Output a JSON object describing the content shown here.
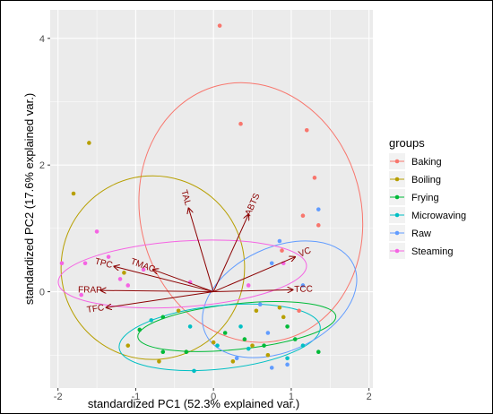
{
  "chart_data": {
    "type": "scatter",
    "title": "",
    "xlabel": "standardized PC1 (52.3% explained var.)",
    "ylabel": "standardized PC2 (17.6% explained var.)",
    "xlim": [
      -2.1,
      2.05
    ],
    "ylim": [
      -1.52,
      4.45
    ],
    "x_ticks": [
      -2,
      -1,
      0,
      1,
      2
    ],
    "y_ticks": [
      0,
      2,
      4
    ],
    "grid": true,
    "legend_title": "groups",
    "legend_position": "right",
    "series": [
      {
        "name": "Baking",
        "color": "#F8766D",
        "points": [
          [
            0.08,
            4.2
          ],
          [
            0.35,
            2.65
          ],
          [
            1.2,
            2.55
          ],
          [
            1.3,
            1.8
          ],
          [
            1.15,
            1.2
          ],
          [
            1.35,
            1.05
          ],
          [
            0.88,
            0.65
          ],
          [
            1.1,
            -0.3
          ]
        ]
      },
      {
        "name": "Boiling",
        "color": "#B79F00",
        "points": [
          [
            -1.6,
            2.35
          ],
          [
            -1.8,
            1.55
          ],
          [
            -1.15,
            0.3
          ],
          [
            -0.45,
            -0.3
          ],
          [
            0.55,
            -0.3
          ],
          [
            0.85,
            -0.25
          ],
          [
            0.5,
            -0.85
          ],
          [
            0.0,
            -0.8
          ],
          [
            -0.7,
            -1.1
          ],
          [
            -0.35,
            -0.95
          ],
          [
            0.25,
            -1.1
          ],
          [
            0.7,
            -1.0
          ],
          [
            0.9,
            -0.4
          ],
          [
            -1.1,
            -0.85
          ]
        ]
      },
      {
        "name": "Frying",
        "color": "#00BA38",
        "points": [
          [
            -0.95,
            -0.6
          ],
          [
            -0.65,
            -0.4
          ],
          [
            -0.35,
            -0.95
          ],
          [
            0.15,
            -0.65
          ],
          [
            0.4,
            -0.75
          ],
          [
            0.65,
            -0.85
          ],
          [
            0.95,
            -0.55
          ],
          [
            1.05,
            -0.75
          ],
          [
            1.35,
            -0.95
          ],
          [
            -0.65,
            -0.95
          ]
        ]
      },
      {
        "name": "Microwaving",
        "color": "#00BFC4",
        "points": [
          [
            -0.8,
            -0.45
          ],
          [
            -0.3,
            -0.55
          ],
          [
            0.05,
            -0.85
          ],
          [
            0.45,
            -0.9
          ],
          [
            0.95,
            -1.05
          ],
          [
            1.15,
            -0.85
          ],
          [
            -0.25,
            -1.25
          ],
          [
            0.35,
            -0.55
          ]
        ]
      },
      {
        "name": "Raw",
        "color": "#619CFF",
        "points": [
          [
            1.35,
            1.3
          ],
          [
            0.85,
            0.8
          ],
          [
            0.75,
            0.45
          ],
          [
            1.15,
            0.1
          ],
          [
            0.6,
            -0.2
          ],
          [
            0.7,
            -0.65
          ],
          [
            0.95,
            -1.15
          ],
          [
            0.3,
            -1.05
          ],
          [
            0.75,
            -1.2
          ]
        ]
      },
      {
        "name": "Steaming",
        "color": "#F564E3",
        "points": [
          [
            -1.95,
            0.45
          ],
          [
            -1.5,
            0.95
          ],
          [
            -1.35,
            0.55
          ],
          [
            -1.1,
            0.1
          ],
          [
            -1.7,
            -0.05
          ],
          [
            -0.9,
            0.35
          ],
          [
            -0.3,
            0.15
          ],
          [
            0.45,
            0.1
          ],
          [
            0.9,
            0.45
          ],
          [
            -1.65,
            0.45
          ],
          [
            -1.2,
            0.2
          ]
        ]
      }
    ],
    "ellipses": [
      {
        "group": "Baking",
        "cx": 0.48,
        "cy": 1.25,
        "rx": 1.42,
        "ry": 2.07,
        "angle": -15
      },
      {
        "group": "Boiling",
        "cx": -0.78,
        "cy": 0.38,
        "rx": 1.18,
        "ry": 1.45,
        "angle": 18
      },
      {
        "group": "Frying",
        "cx": 0.3,
        "cy": -0.55,
        "rx": 1.28,
        "ry": 0.36,
        "angle": -6
      },
      {
        "group": "Microwaving",
        "cx": 0.08,
        "cy": -0.72,
        "rx": 1.3,
        "ry": 0.5,
        "angle": -6
      },
      {
        "group": "Raw",
        "cx": 0.85,
        "cy": -0.12,
        "rx": 1.05,
        "ry": 0.82,
        "angle": -25
      },
      {
        "group": "Steaming",
        "cx": -0.4,
        "cy": 0.28,
        "rx": 1.6,
        "ry": 0.52,
        "angle": -4
      }
    ],
    "loadings": [
      {
        "label": "TAL",
        "x": -0.32,
        "y": 1.32
      },
      {
        "label": "ABTS",
        "x": 0.45,
        "y": 1.22
      },
      {
        "label": "VC",
        "x": 1.05,
        "y": 0.55
      },
      {
        "label": "TCC",
        "x": 1.02,
        "y": 0.03
      },
      {
        "label": "TMAC",
        "x": -0.78,
        "y": 0.35
      },
      {
        "label": "TPC",
        "x": -1.28,
        "y": 0.4
      },
      {
        "label": "FRAP",
        "x": -1.45,
        "y": 0.02
      },
      {
        "label": "TFC",
        "x": -1.38,
        "y": -0.25
      }
    ]
  }
}
